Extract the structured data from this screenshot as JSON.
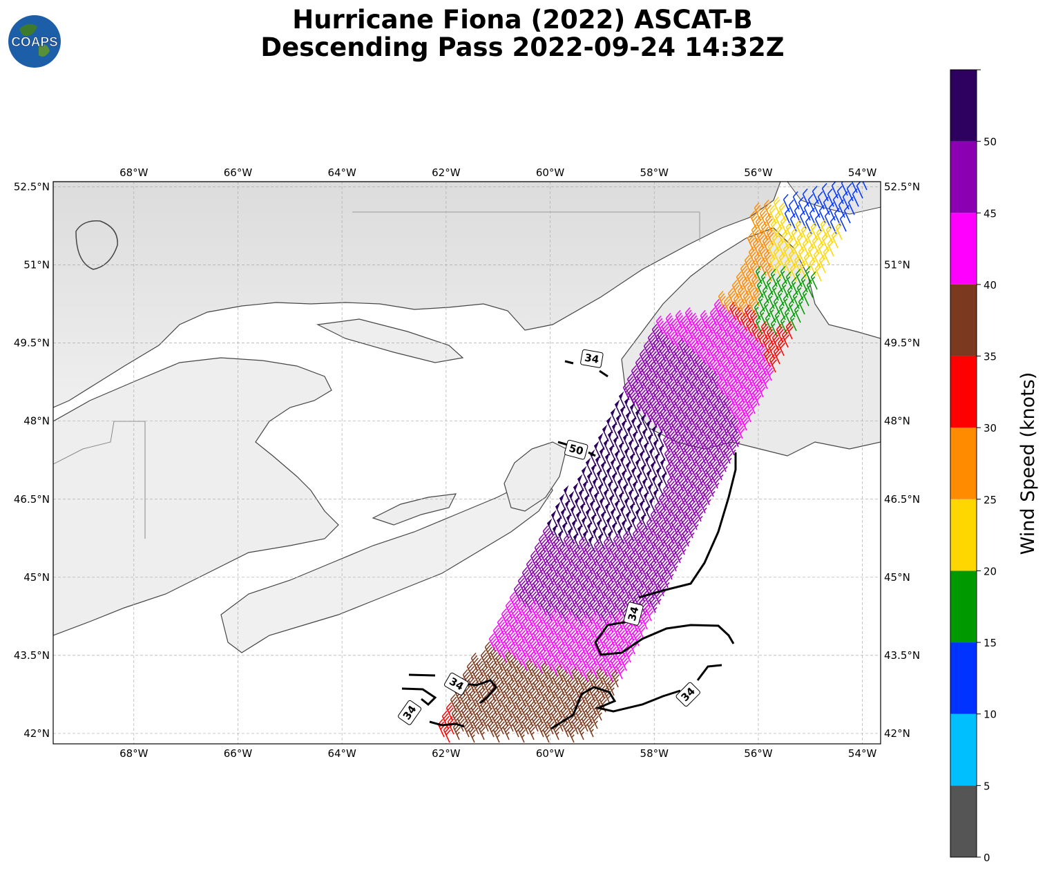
{
  "title": {
    "line1": "Hurricane Fiona (2022) ASCAT-B",
    "line2": "Descending Pass 2022-09-24 14:32Z"
  },
  "logo": {
    "text": "COAPS",
    "icon": "globe-icon"
  },
  "map": {
    "lon_ticks": [
      "68°W",
      "66°W",
      "64°W",
      "62°W",
      "60°W",
      "58°W",
      "56°W",
      "54°W"
    ],
    "lon_values": [
      -68,
      -66,
      -64,
      -62,
      -60,
      -58,
      -56,
      -54
    ],
    "lat_ticks": [
      "52.5°N",
      "51°N",
      "49.5°N",
      "48°N",
      "46.5°N",
      "45°N",
      "43.5°N",
      "42°N"
    ],
    "lat_values": [
      52.5,
      51,
      49.5,
      48,
      46.5,
      45,
      43.5,
      42
    ],
    "lon_range": [
      -69.55,
      -53.65
    ],
    "lat_range": [
      41.8,
      52.6
    ],
    "grid": true
  },
  "contour_labels": [
    {
      "text": "34",
      "lon": -59.2,
      "lat": 49.2,
      "rot": 10
    },
    {
      "text": "50",
      "lon": -59.5,
      "lat": 47.45,
      "rot": 15
    },
    {
      "text": "34",
      "lon": -58.4,
      "lat": 44.3,
      "rot": -75
    },
    {
      "text": "34",
      "lon": -61.8,
      "lat": 42.95,
      "rot": 30
    },
    {
      "text": "34",
      "lon": -62.7,
      "lat": 42.4,
      "rot": -55
    },
    {
      "text": "34",
      "lon": -57.35,
      "lat": 42.75,
      "rot": -45
    }
  ],
  "colorbar": {
    "label": "Wind Speed (knots)",
    "tick_labels": [
      "0",
      "5",
      "10",
      "15",
      "20",
      "25",
      "30",
      "35",
      "40",
      "45",
      "50"
    ],
    "bin_colors": [
      "#555555",
      "#00bfff",
      "#0033ff",
      "#009900",
      "#ffd700",
      "#ff8c00",
      "#ff0000",
      "#7b3a1f",
      "#ff00ff",
      "#8b00b0",
      "#2e0060"
    ],
    "max": 55
  }
}
